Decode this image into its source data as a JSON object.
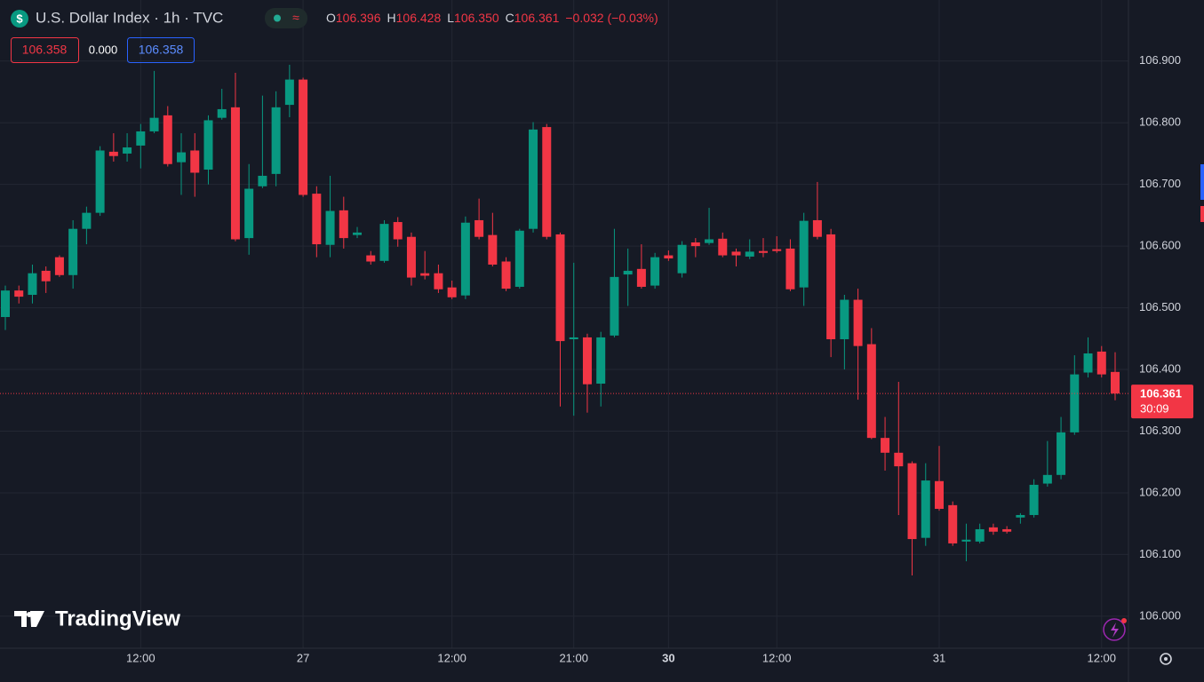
{
  "header": {
    "symbol": "U.S. Dollar Index · 1h · TVC",
    "ohlc": [
      {
        "key": "O",
        "value": "106.396"
      },
      {
        "key": "H",
        "value": "106.428"
      },
      {
        "key": "L",
        "value": "106.350"
      },
      {
        "key": "C",
        "value": "106.361"
      }
    ],
    "change": "−0.032 (−0.03%)",
    "bid": "106.358",
    "spread": "0.000",
    "ask": "106.358"
  },
  "watermark": "TradingView",
  "chart_data": {
    "type": "candlestick",
    "categories": [
      null,
      null,
      null,
      null,
      null,
      null,
      null,
      null,
      null,
      null,
      "12:00",
      null,
      null,
      null,
      null,
      null,
      null,
      null,
      null,
      null,
      null,
      null,
      "27",
      null,
      null,
      null,
      null,
      null,
      null,
      null,
      null,
      null,
      null,
      "12:00",
      null,
      null,
      null,
      null,
      null,
      null,
      null,
      null,
      "21:00",
      null,
      null,
      null,
      null,
      null,
      null,
      "30",
      null,
      null,
      null,
      null,
      null,
      null,
      null,
      "12:00",
      null,
      null,
      null,
      null,
      null,
      null,
      null,
      null,
      null,
      null,
      null,
      "31",
      null,
      null,
      null,
      null,
      null,
      null,
      null,
      null,
      null,
      null,
      null,
      "12:00",
      null
    ],
    "open": [
      106.485,
      106.528,
      106.521,
      106.56,
      106.582,
      106.553,
      106.628,
      106.654,
      106.753,
      106.75,
      106.763,
      106.786,
      106.812,
      106.736,
      106.755,
      106.724,
      106.808,
      106.825,
      106.613,
      106.697,
      106.717,
      106.829,
      106.87,
      106.685,
      106.602,
      106.658,
      106.618,
      106.585,
      106.576,
      106.639,
      106.615,
      106.556,
      106.556,
      106.533,
      106.52,
      106.642,
      106.618,
      106.575,
      106.534,
      106.628,
      106.793,
      106.619,
      106.449,
      106.452,
      106.377,
      106.455,
      106.554,
      106.563,
      106.536,
      106.585,
      106.556,
      106.606,
      106.605,
      106.612,
      106.591,
      106.583,
      106.592,
      106.595,
      106.596,
      106.533,
      106.642,
      106.619,
      106.449,
      106.513,
      106.441,
      106.289,
      106.265,
      106.248,
      106.127,
      106.219,
      106.18,
      106.121,
      106.121,
      106.144,
      106.141,
      106.16,
      106.164,
      106.215,
      106.229,
      106.298,
      106.395,
      106.429,
      106.396
    ],
    "high": [
      106.536,
      106.536,
      106.57,
      106.567,
      106.585,
      106.642,
      106.664,
      106.762,
      106.783,
      106.783,
      106.798,
      106.884,
      106.827,
      106.783,
      106.783,
      106.812,
      106.855,
      106.881,
      106.733,
      106.844,
      106.851,
      106.894,
      106.873,
      106.697,
      106.714,
      106.68,
      106.631,
      106.592,
      106.642,
      106.647,
      106.622,
      106.592,
      106.57,
      106.544,
      106.648,
      106.677,
      106.654,
      106.582,
      106.628,
      106.801,
      106.798,
      106.622,
      106.573,
      106.458,
      106.461,
      106.628,
      106.596,
      106.603,
      106.589,
      106.593,
      106.608,
      106.613,
      106.662,
      106.622,
      106.596,
      106.611,
      106.613,
      106.616,
      106.611,
      106.654,
      106.704,
      106.628,
      106.521,
      106.531,
      106.467,
      106.323,
      106.38,
      106.251,
      106.248,
      106.276,
      106.186,
      106.15,
      106.15,
      106.15,
      106.146,
      106.167,
      106.222,
      106.284,
      106.323,
      106.423,
      106.452,
      106.438,
      106.428
    ],
    "low": [
      106.464,
      106.507,
      106.507,
      106.524,
      106.55,
      106.531,
      106.603,
      106.649,
      106.737,
      106.737,
      106.726,
      106.783,
      106.729,
      106.683,
      106.68,
      106.7,
      106.805,
      106.608,
      106.586,
      106.694,
      106.697,
      106.809,
      106.68,
      106.582,
      106.582,
      106.596,
      106.613,
      106.57,
      106.573,
      106.599,
      106.536,
      106.546,
      106.524,
      106.514,
      106.514,
      106.611,
      106.567,
      106.527,
      106.531,
      106.622,
      106.611,
      106.34,
      106.325,
      106.33,
      106.34,
      106.452,
      106.503,
      106.531,
      106.531,
      106.576,
      106.549,
      106.582,
      106.602,
      106.582,
      106.567,
      106.579,
      106.582,
      106.589,
      106.527,
      106.503,
      106.611,
      106.42,
      106.4,
      106.351,
      106.287,
      106.236,
      106.164,
      106.066,
      106.114,
      106.171,
      106.114,
      106.089,
      106.118,
      106.132,
      106.134,
      106.15,
      106.16,
      106.21,
      106.222,
      106.294,
      106.387,
      106.387,
      106.35
    ],
    "close": [
      106.528,
      106.518,
      106.556,
      106.543,
      106.553,
      106.628,
      106.654,
      106.755,
      106.746,
      106.76,
      106.786,
      106.808,
      106.733,
      106.752,
      106.719,
      106.804,
      106.822,
      106.611,
      106.693,
      106.714,
      106.825,
      106.87,
      106.683,
      106.603,
      106.657,
      106.613,
      106.622,
      106.575,
      106.636,
      106.611,
      106.549,
      106.552,
      106.53,
      106.517,
      106.638,
      106.615,
      106.57,
      106.531,
      106.625,
      106.789,
      106.615,
      106.446,
      106.452,
      106.376,
      106.452,
      106.55,
      106.56,
      106.534,
      106.582,
      106.58,
      106.602,
      106.6,
      106.611,
      106.585,
      106.585,
      106.591,
      106.589,
      106.592,
      106.53,
      106.641,
      106.615,
      106.449,
      106.513,
      106.438,
      106.289,
      106.265,
      106.243,
      106.125,
      106.22,
      106.174,
      106.118,
      106.124,
      106.141,
      106.137,
      106.137,
      106.164,
      106.213,
      106.229,
      106.298,
      106.392,
      106.426,
      106.392,
      106.361
    ],
    "up_color": "#089981",
    "down_color": "#f23645",
    "ylim": [
      105.948,
      106.999
    ],
    "yticks": [
      {
        "value": 106.0,
        "label": "106.000"
      },
      {
        "value": 106.1,
        "label": "106.100"
      },
      {
        "value": 106.2,
        "label": "106.200"
      },
      {
        "value": 106.3,
        "label": "106.300"
      },
      {
        "value": 106.4,
        "label": "106.400"
      },
      {
        "value": 106.5,
        "label": "106.500"
      },
      {
        "value": 106.6,
        "label": "106.600"
      },
      {
        "value": 106.7,
        "label": "106.700"
      },
      {
        "value": 106.8,
        "label": "106.800"
      },
      {
        "value": 106.9,
        "label": "106.900"
      }
    ],
    "grid": true,
    "countdown": "30:09"
  }
}
